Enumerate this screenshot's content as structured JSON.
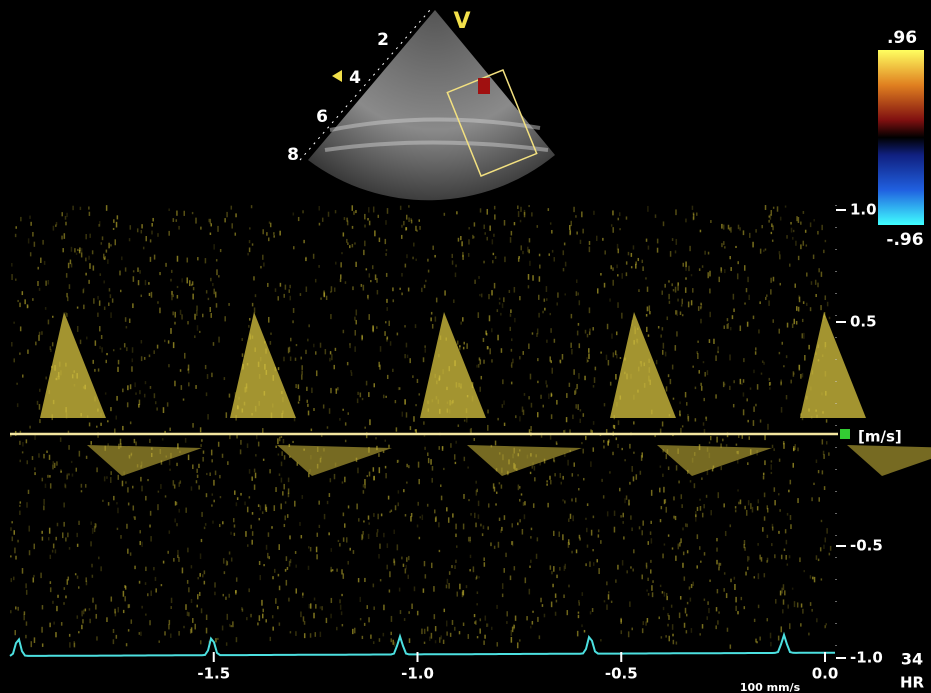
{
  "sector": {
    "label": "V",
    "depth_labels": [
      "2",
      "4",
      "6",
      "8"
    ]
  },
  "color_scale": {
    "max_label": ".96",
    "min_label": "-.96"
  },
  "velocity_axis": {
    "unit": "[m/s]",
    "lim": [
      -1.0,
      1.0
    ],
    "ticks": [
      {
        "value": 1.0,
        "label": "1.0"
      },
      {
        "value": 0.5,
        "label": "0.5"
      },
      {
        "value": -0.5,
        "label": "-0.5"
      },
      {
        "value": -1.0,
        "label": "-1.0"
      }
    ]
  },
  "time_axis": {
    "lim": [
      -2.0,
      0.0
    ],
    "ticks": [
      {
        "value": -1.5,
        "label": "-1.5"
      },
      {
        "value": -1.0,
        "label": "-1.0"
      },
      {
        "value": -0.5,
        "label": "-0.5"
      },
      {
        "value": 0.0,
        "label": "0.0"
      }
    ]
  },
  "sweep_speed": "100 mm/s",
  "heart_rate": {
    "value": "34",
    "label": "HR"
  }
}
